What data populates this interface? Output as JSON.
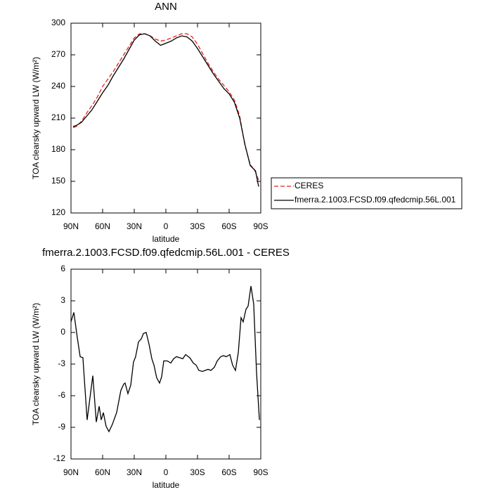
{
  "chart_data": [
    {
      "type": "line",
      "title": "ANN",
      "xlabel": "latitude",
      "ylabel": "TOA clearsky upward LW (W/m²)",
      "xlim": [
        90,
        -90
      ],
      "ylim": [
        120,
        300
      ],
      "xticks": [
        {
          "value": 90,
          "label": "90N"
        },
        {
          "value": 60,
          "label": "60N"
        },
        {
          "value": 30,
          "label": "30N"
        },
        0,
        {
          "value": -30,
          "label": "30S"
        },
        {
          "value": -60,
          "label": "60S"
        },
        {
          "value": -90,
          "label": "90S"
        }
      ],
      "yticks": [
        120,
        150,
        180,
        210,
        240,
        270,
        300
      ],
      "legend": "outside right",
      "x": [
        88,
        85,
        80,
        75,
        70,
        65,
        60,
        55,
        50,
        45,
        40,
        35,
        30,
        25,
        20,
        15,
        10,
        5,
        0,
        -5,
        -10,
        -15,
        -20,
        -25,
        -30,
        -35,
        -40,
        -45,
        -50,
        -55,
        -60,
        -65,
        -70,
        -75,
        -80,
        -85,
        -88
      ],
      "series": [
        {
          "name": "CERES",
          "color": "#e8221e",
          "style": "dashed",
          "values": [
            201,
            202,
            207,
            215,
            222,
            230,
            240,
            247,
            254,
            262,
            270,
            278,
            286,
            290,
            290,
            288,
            285,
            283,
            284,
            286,
            288,
            290,
            290,
            287,
            280,
            271,
            262,
            254,
            247,
            241,
            235,
            227,
            212,
            184,
            166,
            159,
            151
          ]
        },
        {
          "name": "fmerra.2.1003.FCSD.f09.qfedcmip.56L.001",
          "color": "#000000",
          "style": "solid",
          "values": [
            202,
            203,
            206,
            212,
            218,
            226,
            234,
            241,
            250,
            258,
            266,
            275,
            284,
            289,
            290,
            288,
            283,
            279,
            281,
            283,
            286,
            288,
            287,
            283,
            276,
            268,
            260,
            252,
            245,
            238,
            233,
            225,
            210,
            185,
            165,
            160,
            145
          ]
        }
      ]
    },
    {
      "type": "line",
      "title": "fmerra.2.1003.FCSD.f09.qfedcmip.56L.001 - CERES",
      "xlabel": "latitude",
      "ylabel": "TOA clearsky upward LW (W/m²)",
      "xlim": [
        90,
        -90
      ],
      "ylim": [
        -12,
        6
      ],
      "xticks": [
        {
          "value": 90,
          "label": "90N"
        },
        {
          "value": 60,
          "label": "60N"
        },
        {
          "value": 30,
          "label": "30N"
        },
        0,
        {
          "value": -30,
          "label": "30S"
        },
        {
          "value": -60,
          "label": "60S"
        },
        {
          "value": -90,
          "label": "90S"
        }
      ],
      "yticks": [
        -12,
        -9,
        -6,
        -3,
        0,
        3,
        6
      ],
      "x": [
        90,
        87.3,
        84,
        81.3,
        78.7,
        74.7,
        69.3,
        66,
        63.3,
        61.3,
        59.3,
        56.7,
        54,
        50.7,
        46.7,
        42.7,
        40,
        38.7,
        36,
        33.3,
        30.7,
        28.7,
        26,
        23.3,
        21.3,
        18.7,
        16,
        13.3,
        11.3,
        8.7,
        6,
        4,
        2,
        -1.3,
        -4.7,
        -7.3,
        -10,
        -13.3,
        -16,
        -18.7,
        -22.7,
        -26,
        -28.7,
        -31.3,
        -34.7,
        -37.3,
        -40,
        -42.7,
        -46,
        -48.7,
        -52,
        -54.7,
        -57.3,
        -60.7,
        -63.3,
        -66,
        -68.7,
        -71.3,
        -73.3,
        -76,
        -78,
        -80.7,
        -83.3,
        -86,
        -88.7
      ],
      "series": [
        {
          "color": "#000000",
          "style": "solid",
          "values": [
            1,
            1.9,
            -0.5,
            -2.3,
            -2.4,
            -8.3,
            -4.1,
            -8.5,
            -7,
            -8.3,
            -7.6,
            -8.9,
            -9.4,
            -8.7,
            -7.6,
            -5.5,
            -4.9,
            -4.8,
            -5.8,
            -5,
            -2.8,
            -2.3,
            -0.9,
            -0.6,
            -0.1,
            0,
            -1.1,
            -2.5,
            -3.1,
            -4.3,
            -4.8,
            -4.2,
            -2.7,
            -2.7,
            -2.9,
            -2.5,
            -2.3,
            -2.4,
            -2.5,
            -2.1,
            -2.4,
            -2.9,
            -3.1,
            -3.6,
            -3.7,
            -3.6,
            -3.5,
            -3.6,
            -3.3,
            -2.7,
            -2.3,
            -2.2,
            -2.3,
            -2.1,
            -3.1,
            -3.6,
            -1.9,
            1.4,
            1,
            2.2,
            2.5,
            4.4,
            2.7,
            -3.8,
            -8.3
          ]
        }
      ]
    }
  ]
}
